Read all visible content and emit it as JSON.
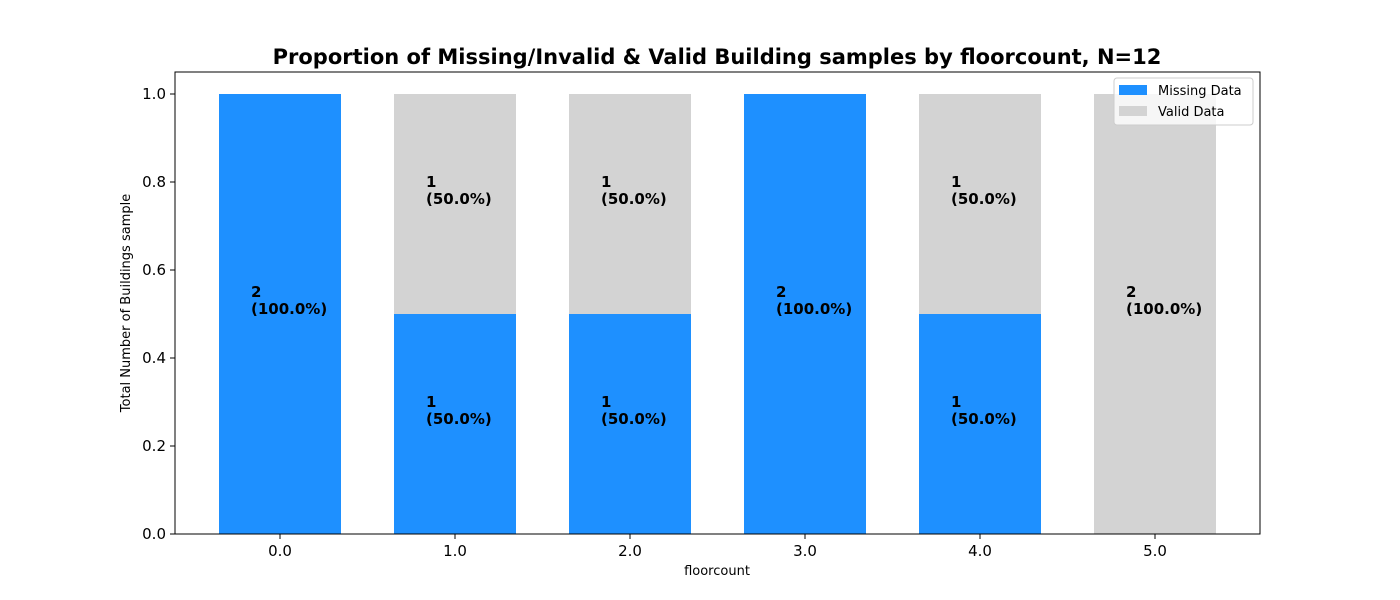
{
  "chart_data": {
    "type": "bar",
    "stacked": true,
    "title": "Proportion of Missing/Invalid & Valid Building samples by floorcount, N=12",
    "xlabel": "floorcount",
    "ylabel": "Total Number of Buildings sample",
    "categories": [
      "0.0",
      "1.0",
      "2.0",
      "3.0",
      "4.0",
      "5.0"
    ],
    "ylim": [
      0,
      1.05
    ],
    "yticks": [
      "0.0",
      "0.2",
      "0.4",
      "0.6",
      "0.8",
      "1.0"
    ],
    "legend_position": "top-right",
    "grid": false,
    "series": [
      {
        "name": "Missing Data",
        "color": "#1e90ff",
        "values": [
          1.0,
          0.5,
          0.5,
          1.0,
          0.5,
          0.0
        ],
        "labels": [
          [
            "2",
            "(100.0%)"
          ],
          [
            "1",
            "(50.0%)"
          ],
          [
            "1",
            "(50.0%)"
          ],
          [
            "2",
            "(100.0%)"
          ],
          [
            "1",
            "(50.0%)"
          ],
          null
        ]
      },
      {
        "name": "Valid Data",
        "color": "#d3d3d3",
        "values": [
          0.0,
          0.5,
          0.5,
          0.0,
          0.5,
          1.0
        ],
        "labels": [
          null,
          [
            "1",
            "(50.0%)"
          ],
          [
            "1",
            "(50.0%)"
          ],
          null,
          [
            "1",
            "(50.0%)"
          ],
          [
            "2",
            "(100.0%)"
          ]
        ]
      }
    ]
  }
}
